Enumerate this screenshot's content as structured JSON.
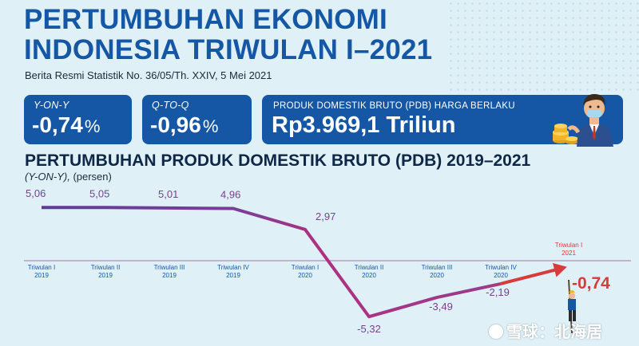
{
  "header": {
    "title_line1": "PERTUMBUHAN EKONOMI",
    "title_line2": "INDONESIA TRIWULAN I–2021",
    "subtitle": "Berita Resmi Statistik No. 36/05/Th. XXIV, 5 Mei 2021"
  },
  "cards": [
    {
      "label": "Y-ON-Y",
      "value": "-0,74",
      "unit": "%"
    },
    {
      "label": "Q-TO-Q",
      "value": "-0,96",
      "unit": "%"
    },
    {
      "label": "PRODUK DOMESTIK BRUTO (PDB) HARGA BERLAKU",
      "value": "Rp3.969,1 Triliun"
    }
  ],
  "chart_data": {
    "type": "line",
    "title": "PERTUMBUHAN PRODUK DOMESTIK BRUTO (PDB) 2019–2021",
    "unit_italic": "(Y-ON-Y),",
    "unit": "(persen)",
    "categories": [
      {
        "q": "Triwulan I",
        "y": "2019"
      },
      {
        "q": "Triwulan II",
        "y": "2019"
      },
      {
        "q": "Triwulan III",
        "y": "2019"
      },
      {
        "q": "Triwulan IV",
        "y": "2019"
      },
      {
        "q": "Triwulan I",
        "y": "2020"
      },
      {
        "q": "Triwulan II",
        "y": "2020"
      },
      {
        "q": "Triwulan III",
        "y": "2020"
      },
      {
        "q": "Triwulan IV",
        "y": "2020"
      },
      {
        "q": "Triwulan I",
        "y": "2021"
      }
    ],
    "values": [
      5.06,
      5.05,
      5.01,
      4.96,
      2.97,
      -5.32,
      -3.49,
      -2.19,
      -0.74
    ],
    "labels": [
      "5,06",
      "5,05",
      "5,01",
      "4,96",
      "2,97",
      "-5,32",
      "-3,49",
      "-2,19",
      "-0,74"
    ],
    "colors": {
      "line_start": "#6d3fa0",
      "line_mid": "#b0307f",
      "highlight": "#d93a3a",
      "axis": "#b06fa5",
      "label": "#7a3f8e",
      "category": "#1557a5"
    }
  },
  "watermark": "雪球：北海居"
}
